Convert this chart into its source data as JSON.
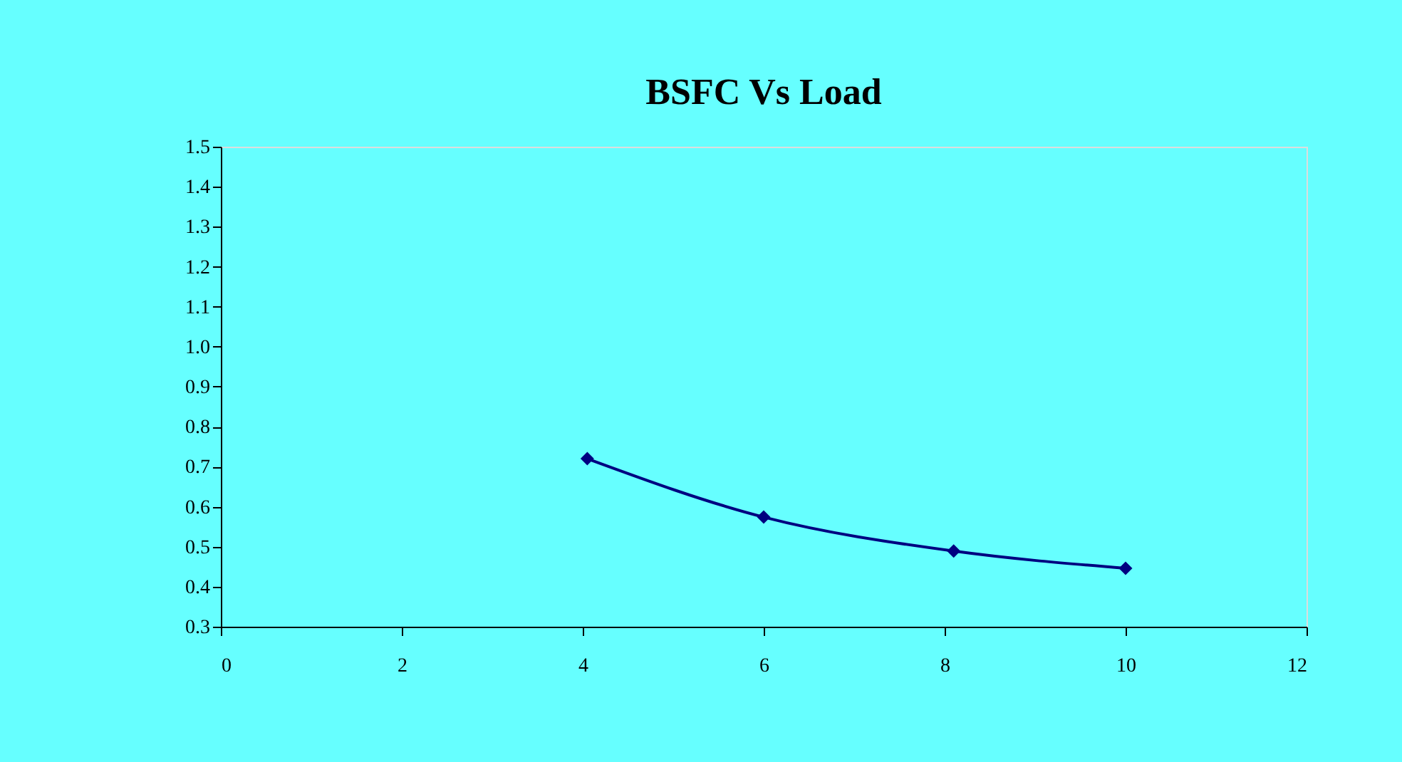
{
  "chart_data": {
    "type": "line",
    "title": "BSFC Vs Load",
    "x": [
      4.05,
      6.0,
      8.1,
      10.0
    ],
    "series": [
      {
        "color": "#000080",
        "values": [
          0.72,
          0.574,
          0.489,
          0.446
        ]
      }
    ],
    "xlim": [
      0,
      12
    ],
    "xticks": [
      0,
      2,
      4,
      6,
      8,
      10,
      12
    ],
    "ylim": [
      0.3,
      1.5
    ],
    "yticks": [
      0.3,
      0.4,
      0.5,
      0.6,
      0.7,
      0.8,
      0.9,
      {
        "value": 1.0,
        "label": "1.0"
      },
      1.1,
      1.2,
      1.3,
      1.4,
      1.5
    ],
    "grid": false,
    "marker": "diamond",
    "line_style": "solid"
  }
}
